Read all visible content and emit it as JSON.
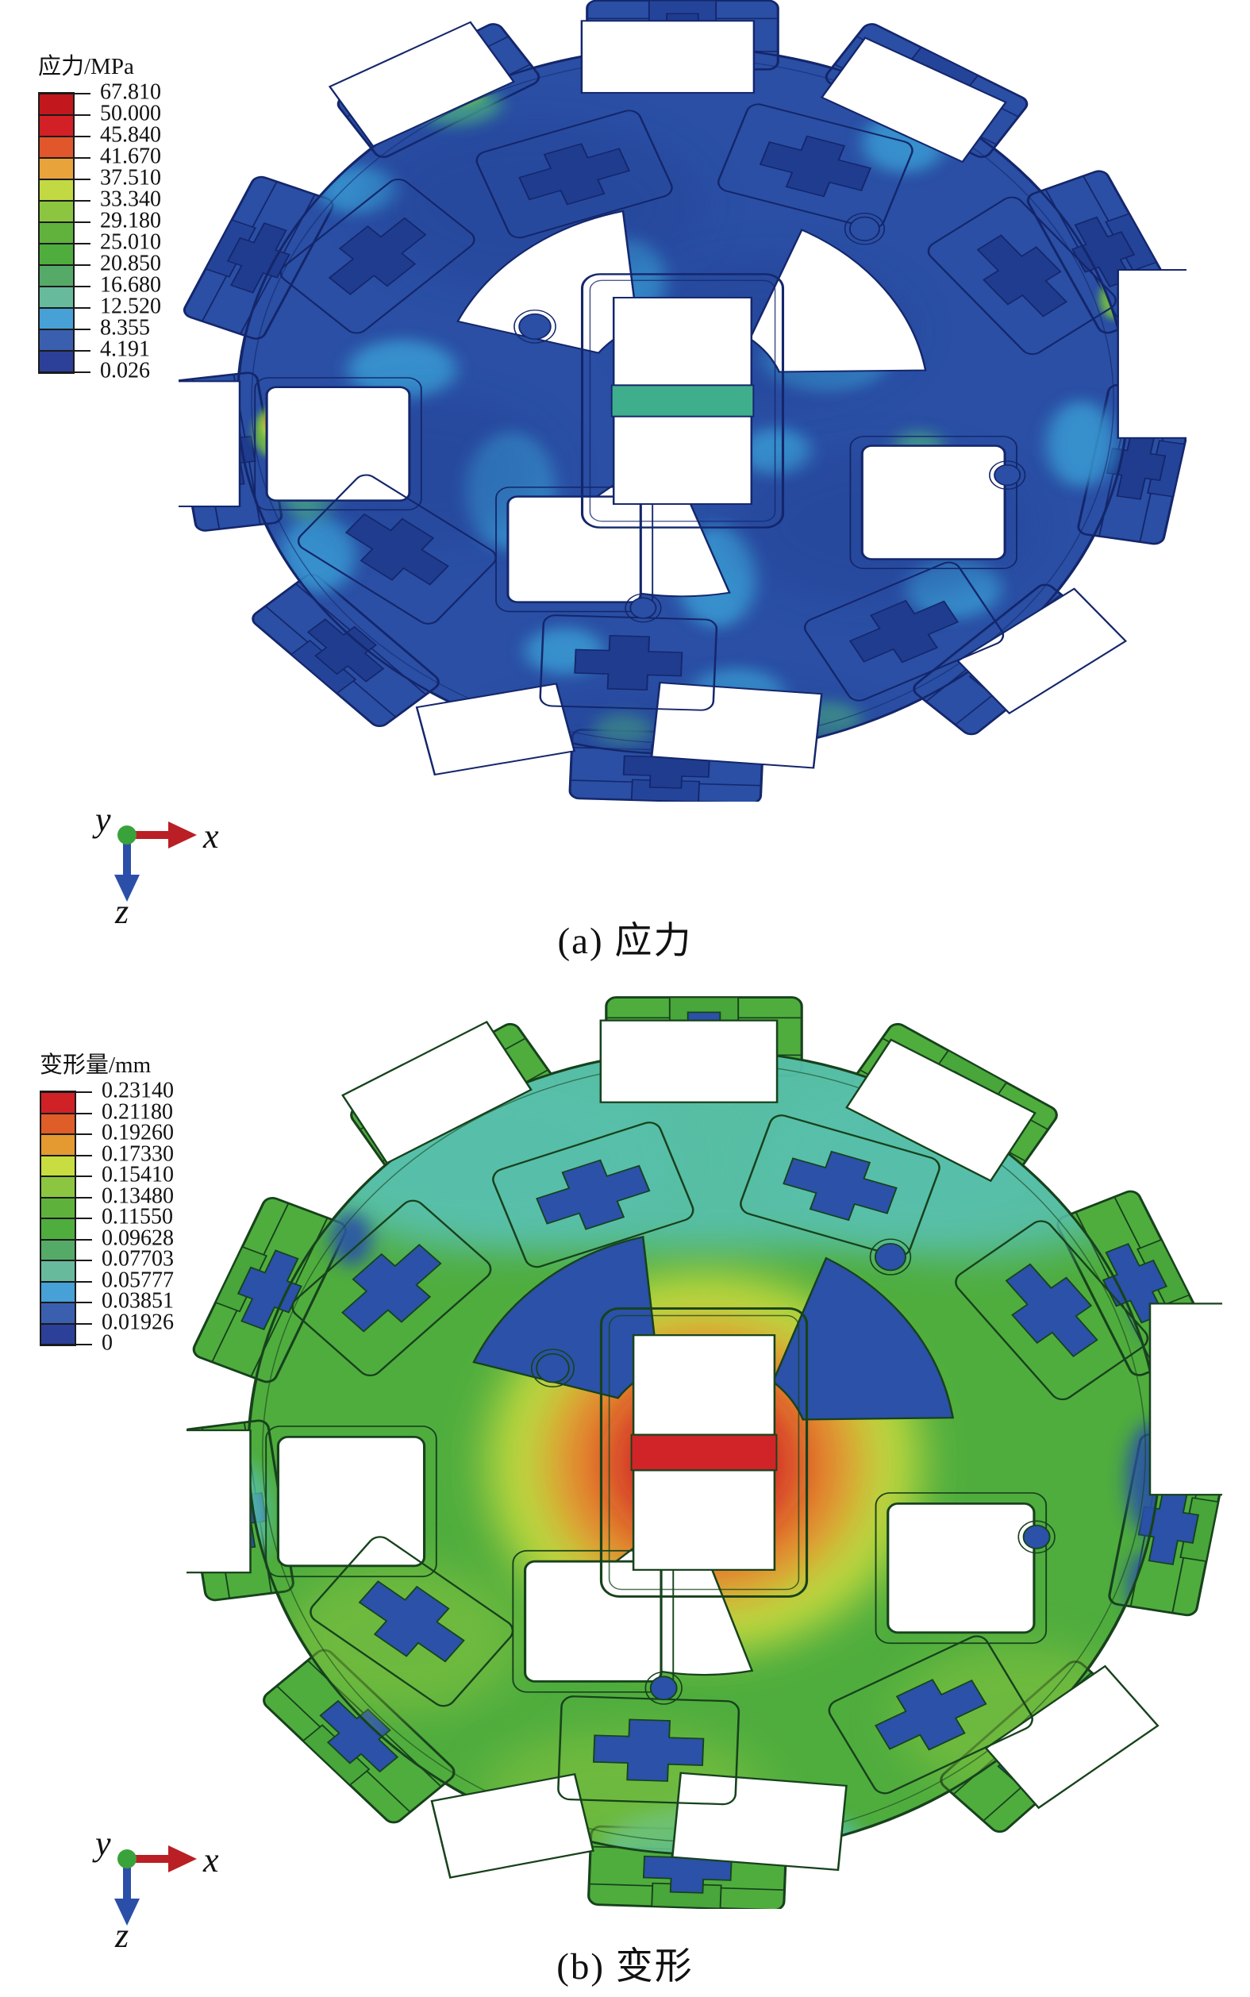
{
  "figures": [
    {
      "id": "stress",
      "caption": "(a) 应力",
      "legend": {
        "title": "应力/MPa",
        "tick_labels": [
          "67.810",
          "50.000",
          "45.840",
          "41.670",
          "37.510",
          "33.340",
          "29.180",
          "25.010",
          "20.850",
          "16.680",
          "12.520",
          "8.355",
          "4.191",
          "0.026"
        ],
        "band_colors": [
          "#c2181d",
          "#d32026",
          "#e1562a",
          "#e8a33b",
          "#c2d943",
          "#8cc640",
          "#60b23c",
          "#4fad3e",
          "#55aa68",
          "#67bb9c",
          "#47a0d6",
          "#3a5fae",
          "#2c3f99"
        ]
      },
      "axis_triad": {
        "labels": {
          "x": "x",
          "y": "y",
          "z": "z"
        },
        "colors": {
          "x_arrow": "#b91f24",
          "z_arrow": "#2b4fa8",
          "origin": "#3aa23a"
        }
      },
      "palette": {
        "base": "#2a4fa4",
        "line": "#14266b",
        "blockShade": "#24449a",
        "mount": "#1f3c8f",
        "bar": "#3fae8c",
        "patch_cyan": "#3a9fd6",
        "patch_teal": "#4bb183",
        "patch_green": "#76c13d",
        "patch_yellow": "#dde23c",
        "patch_red": "#d42127",
        "dark": "#223f94"
      }
    },
    {
      "id": "deformation",
      "caption": "(b) 变形",
      "legend": {
        "title": "变形量/mm",
        "tick_labels": [
          "0.23140",
          "0.21180",
          "0.19260",
          "0.17330",
          "0.15410",
          "0.13480",
          "0.11550",
          "0.09628",
          "0.07703",
          "0.05777",
          "0.03851",
          "0.01926",
          "0"
        ],
        "band_colors": [
          "#d02127",
          "#de5d28",
          "#e49a31",
          "#c8dd3f",
          "#8cc640",
          "#5eb23c",
          "#4fad3e",
          "#55aa68",
          "#67bb9c",
          "#47a0d6",
          "#3a5fae",
          "#2c3f99"
        ]
      },
      "axis_triad": {
        "labels": {
          "x": "x",
          "y": "y",
          "z": "z"
        },
        "colors": {
          "x_arrow": "#b91f24",
          "z_arrow": "#2b4fa8",
          "origin": "#3aa23a"
        }
      },
      "palette": {
        "base": "#4fad3e",
        "line": "#17421c",
        "blockShade": "#48a63a",
        "mount": "#2b51a8",
        "bar": "#d02428",
        "teal": "#58bfaa",
        "blue": "#2b51a8",
        "lime": "#8cc640",
        "ringYellow": "#c8dd3f",
        "ringOrange": "#e49a31",
        "ringDeepOrange": "#df6a29",
        "ringRed": "#d02428",
        "dark": "#3f9c38"
      }
    }
  ]
}
